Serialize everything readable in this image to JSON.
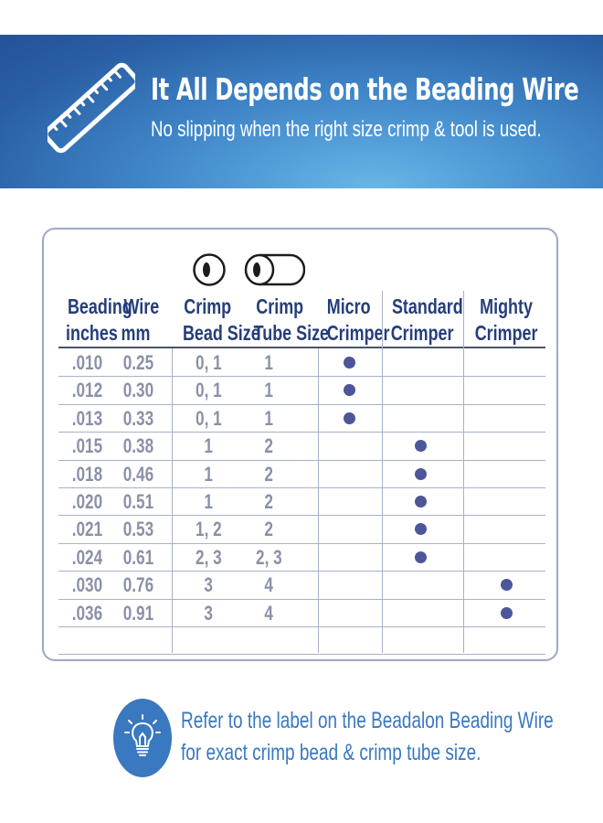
{
  "header": {
    "title": "It All Depends on the Beading Wire",
    "subtitle": "No slipping when the right size crimp & tool is used."
  },
  "table": {
    "headers": {
      "beading_line1": "Beading",
      "beading_line2": "inches",
      "wire_line1": "Wire",
      "wire_line2": "mm",
      "crimp_bead_line1": "Crimp",
      "crimp_bead_line2": "Bead Size",
      "crimp_tube_line1": "Crimp",
      "crimp_tube_line2": "Tube Size",
      "micro_line1": "Micro",
      "micro_line2": "Crimper",
      "standard_line1": "Standard",
      "standard_line2": "Crimper",
      "mighty_line1": "Mighty",
      "mighty_line2": "Crimper"
    },
    "rows": [
      {
        "inches": ".010",
        "mm": "0.25",
        "bead": "0, 1",
        "tube": "1",
        "tool": "micro"
      },
      {
        "inches": ".012",
        "mm": "0.30",
        "bead": "0, 1",
        "tube": "1",
        "tool": "micro"
      },
      {
        "inches": ".013",
        "mm": "0.33",
        "bead": "0, 1",
        "tube": "1",
        "tool": "micro"
      },
      {
        "inches": ".015",
        "mm": "0.38",
        "bead": "1",
        "tube": "2",
        "tool": "standard"
      },
      {
        "inches": ".018",
        "mm": "0.46",
        "bead": "1",
        "tube": "2",
        "tool": "standard"
      },
      {
        "inches": ".020",
        "mm": "0.51",
        "bead": "1",
        "tube": "2",
        "tool": "standard"
      },
      {
        "inches": ".021",
        "mm": "0.53",
        "bead": "1, 2",
        "tube": "2",
        "tool": "standard"
      },
      {
        "inches": ".024",
        "mm": "0.61",
        "bead": "2, 3",
        "tube": "2, 3",
        "tool": "standard"
      },
      {
        "inches": ".030",
        "mm": "0.76",
        "bead": "3",
        "tube": "4",
        "tool": "mighty"
      },
      {
        "inches": ".036",
        "mm": "0.91",
        "bead": "3",
        "tube": "4",
        "tool": "mighty"
      }
    ]
  },
  "icons": {
    "banner": "ruler-icon",
    "crimp_bead": "crimp-bead-icon",
    "crimp_tube": "crimp-tube-icon",
    "tip": "lightbulb-icon",
    "tool_marker": "dot-marker"
  },
  "tip": {
    "line1": "Refer to the label on the Beadalon Beading Wire",
    "line2": "for exact crimp bead & crimp tube size."
  },
  "colors": {
    "banner_dark": "#24539a",
    "banner_light": "#69b6e8",
    "header_text": "#253e7a",
    "body_text": "#8a90a8",
    "dot": "#4c5698",
    "tip_blue": "#3a78c0"
  }
}
